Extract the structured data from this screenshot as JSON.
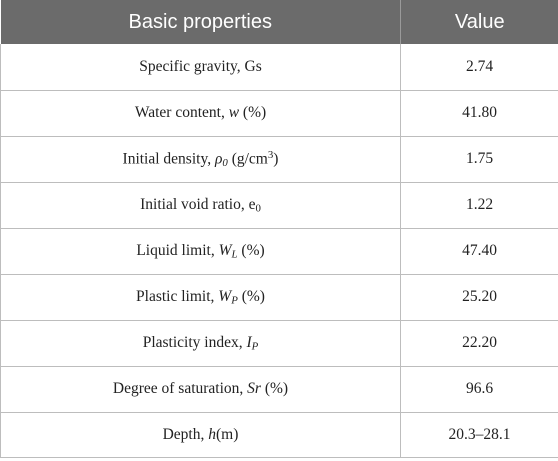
{
  "table": {
    "headers": [
      "Basic properties",
      "Value"
    ],
    "rows": [
      {
        "label": "Specific gravity, Gs",
        "value": "2.74"
      },
      {
        "label_pre": "Water content, ",
        "label_sym": "w",
        "label_post": " (%)",
        "value": "41.80"
      },
      {
        "label_pre": "Initial density, ",
        "label_sym": "ρ",
        "label_sub": "0",
        "label_unit_pre": " (g/cm",
        "label_sup": "3",
        "label_unit_post": ")",
        "value": "1.75"
      },
      {
        "label_pre": "Initial void ratio, e",
        "label_sub": "0",
        "value": "1.22"
      },
      {
        "label_pre": "Liquid limit, ",
        "label_sym": "W",
        "label_sub": "L",
        "label_post": " (%)",
        "value": "47.40"
      },
      {
        "label_pre": "Plastic limit, ",
        "label_sym": "W",
        "label_sub": "P",
        "label_post": " (%)",
        "value": "25.20"
      },
      {
        "label_pre": "Plasticity index, ",
        "label_sym": "I",
        "label_sub": "P",
        "value": "22.20"
      },
      {
        "label_pre": "Degree of saturation, ",
        "label_sym": "Sr",
        "label_post": " (%)",
        "value": "96.6"
      },
      {
        "label_pre": "Depth, ",
        "label_sym": "h",
        "label_post": "(m)",
        "value": "20.3–28.1"
      }
    ]
  }
}
